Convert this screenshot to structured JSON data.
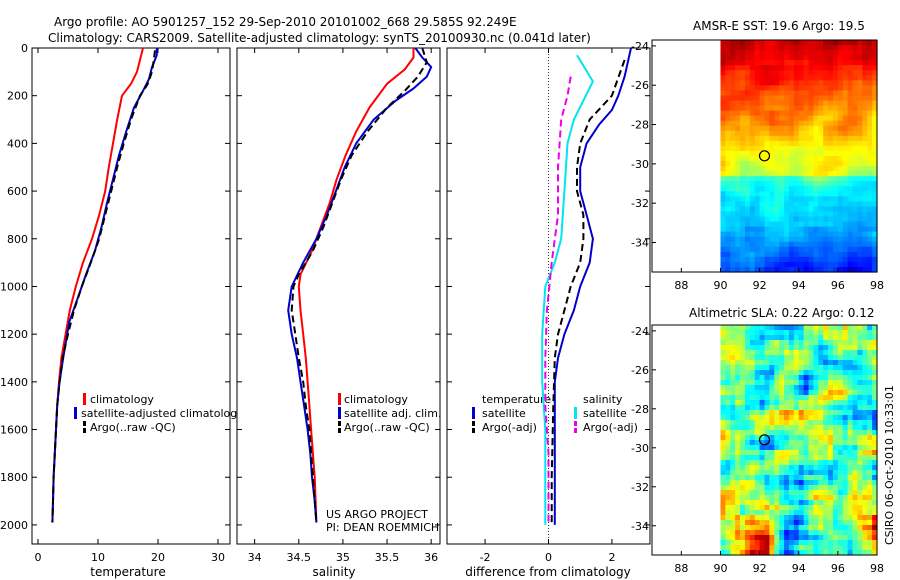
{
  "header": {
    "line1": "Argo profile: AO 5901257_152 29-Sep-2010 20101002_668 29.585S 92.249E",
    "line2": "Climatology: CARS2009. Satellite-adjusted climatology: synTS_20100930.nc (0.041d later)"
  },
  "colors": {
    "climatology": "#ff0000",
    "satellite": "#0000cc",
    "argo": "#000000",
    "cyan": "#00e5ee",
    "magenta": "#ee00ee"
  },
  "chart_data": [
    {
      "type": "line",
      "name": "temperature",
      "xlabel": "temperature",
      "ylabel": "",
      "xlim": [
        -1,
        32
      ],
      "ylim": [
        2080,
        0
      ],
      "xticks": [
        "0",
        "10",
        "20",
        "30"
      ],
      "xtick_values": [
        0,
        10,
        20,
        30
      ],
      "yticks": [
        "0",
        "200",
        "400",
        "600",
        "800",
        "1000",
        "1200",
        "1400",
        "1600",
        "1800",
        "2000"
      ],
      "ytick_values": [
        0,
        200,
        400,
        600,
        800,
        1000,
        1200,
        1400,
        1600,
        1800,
        2000
      ],
      "legend": [
        "climatology",
        "satellite-adjusted climatolog",
        "Argo(..raw -QC)"
      ],
      "series": [
        {
          "name": "climatology",
          "color": "#ff0000",
          "dash": "",
          "width": 2,
          "points": [
            [
              17.5,
              0
            ],
            [
              17,
              50
            ],
            [
              16.5,
              100
            ],
            [
              15.5,
              150
            ],
            [
              14,
              200
            ],
            [
              13.2,
              300
            ],
            [
              12.5,
              400
            ],
            [
              11.8,
              500
            ],
            [
              11.2,
              600
            ],
            [
              10.2,
              700
            ],
            [
              9,
              800
            ],
            [
              7.5,
              900
            ],
            [
              6.3,
              1000
            ],
            [
              5.3,
              1100
            ],
            [
              4.6,
              1200
            ],
            [
              3.9,
              1300
            ],
            [
              3.5,
              1400
            ],
            [
              3.2,
              1500
            ],
            [
              3,
              1600
            ],
            [
              2.8,
              1700
            ],
            [
              2.6,
              1800
            ],
            [
              2.5,
              1900
            ],
            [
              2.4,
              1990
            ]
          ]
        },
        {
          "name": "satellite-adjusted climatology",
          "color": "#0000cc",
          "dash": "",
          "width": 2,
          "points": [
            [
              19.8,
              0
            ],
            [
              19.8,
              30
            ],
            [
              19,
              80
            ],
            [
              18.5,
              130
            ],
            [
              17.5,
              180
            ],
            [
              16,
              250
            ],
            [
              14.7,
              350
            ],
            [
              13.5,
              450
            ],
            [
              12.5,
              550
            ],
            [
              11.5,
              650
            ],
            [
              10.6,
              750
            ],
            [
              9.5,
              850
            ],
            [
              8,
              950
            ],
            [
              6.6,
              1050
            ],
            [
              5.2,
              1150
            ],
            [
              4.2,
              1300
            ],
            [
              3.6,
              1400
            ],
            [
              3.2,
              1500
            ],
            [
              3,
              1600
            ],
            [
              2.8,
              1700
            ],
            [
              2.6,
              1800
            ],
            [
              2.5,
              1900
            ],
            [
              2.4,
              1990
            ]
          ]
        },
        {
          "name": "Argo",
          "color": "#000000",
          "dash": "7,4",
          "width": 2,
          "points": [
            [
              19.5,
              10
            ],
            [
              19.3,
              50
            ],
            [
              19,
              100
            ],
            [
              18.3,
              150
            ],
            [
              17,
              200
            ],
            [
              15.5,
              300
            ],
            [
              14.3,
              400
            ],
            [
              13.2,
              500
            ],
            [
              12.2,
              600
            ],
            [
              11.2,
              700
            ],
            [
              10.2,
              800
            ],
            [
              8.8,
              900
            ],
            [
              7.3,
              1000
            ],
            [
              6,
              1100
            ],
            [
              5,
              1200
            ],
            [
              4.1,
              1300
            ],
            [
              3.6,
              1400
            ],
            [
              3.2,
              1500
            ],
            [
              3,
              1600
            ],
            [
              2.8,
              1700
            ],
            [
              2.6,
              1800
            ],
            [
              2.5,
              1900
            ],
            [
              2.4,
              1990
            ]
          ]
        }
      ]
    },
    {
      "type": "line",
      "name": "salinity",
      "xlabel": "salinity",
      "xlim": [
        33.8,
        36.1
      ],
      "ylim": [
        2080,
        0
      ],
      "xticks": [
        "34",
        "34.5",
        "35",
        "35.5",
        "36"
      ],
      "xtick_values": [
        34,
        34.5,
        35,
        35.5,
        36
      ],
      "legend": [
        "climatology",
        "satellite adj. clim.",
        "Argo(..raw -QC)"
      ],
      "annotation": [
        "US ARGO PROJECT",
        "PI: DEAN ROEMMICH"
      ],
      "series": [
        {
          "name": "climatology",
          "color": "#ff0000",
          "dash": "",
          "width": 2,
          "points": [
            [
              35.8,
              0
            ],
            [
              35.8,
              40
            ],
            [
              35.7,
              90
            ],
            [
              35.5,
              150
            ],
            [
              35.3,
              250
            ],
            [
              35.15,
              350
            ],
            [
              35.03,
              450
            ],
            [
              34.93,
              550
            ],
            [
              34.85,
              650
            ],
            [
              34.75,
              750
            ],
            [
              34.65,
              850
            ],
            [
              34.52,
              950
            ],
            [
              34.5,
              1000
            ],
            [
              34.52,
              1100
            ],
            [
              34.55,
              1200
            ],
            [
              34.58,
              1300
            ],
            [
              34.6,
              1400
            ],
            [
              34.62,
              1500
            ],
            [
              34.64,
              1600
            ],
            [
              34.66,
              1700
            ],
            [
              34.68,
              1800
            ],
            [
              34.69,
              1900
            ],
            [
              34.7,
              1990
            ]
          ]
        },
        {
          "name": "satellite adj. clim.",
          "color": "#0000cc",
          "dash": "",
          "width": 2,
          "points": [
            [
              35.82,
              0
            ],
            [
              35.9,
              40
            ],
            [
              36.0,
              80
            ],
            [
              35.95,
              120
            ],
            [
              35.8,
              170
            ],
            [
              35.6,
              220
            ],
            [
              35.35,
              300
            ],
            [
              35.15,
              400
            ],
            [
              35.02,
              500
            ],
            [
              34.92,
              600
            ],
            [
              34.82,
              700
            ],
            [
              34.7,
              800
            ],
            [
              34.55,
              900
            ],
            [
              34.42,
              1000
            ],
            [
              34.38,
              1100
            ],
            [
              34.42,
              1200
            ],
            [
              34.48,
              1300
            ],
            [
              34.52,
              1400
            ],
            [
              34.56,
              1500
            ],
            [
              34.6,
              1600
            ],
            [
              34.63,
              1700
            ],
            [
              34.65,
              1800
            ],
            [
              34.68,
              1900
            ],
            [
              34.7,
              1990
            ]
          ]
        },
        {
          "name": "Argo",
          "color": "#000000",
          "dash": "7,4",
          "width": 2,
          "points": [
            [
              35.9,
              0
            ],
            [
              35.95,
              60
            ],
            [
              35.85,
              120
            ],
            [
              35.7,
              180
            ],
            [
              35.5,
              250
            ],
            [
              35.28,
              350
            ],
            [
              35.1,
              450
            ],
            [
              34.98,
              550
            ],
            [
              34.88,
              650
            ],
            [
              34.78,
              750
            ],
            [
              34.66,
              850
            ],
            [
              34.5,
              950
            ],
            [
              34.44,
              1000
            ],
            [
              34.42,
              1100
            ],
            [
              34.46,
              1200
            ],
            [
              34.5,
              1300
            ],
            [
              34.55,
              1400
            ],
            [
              34.58,
              1500
            ],
            [
              34.62,
              1600
            ],
            [
              34.64,
              1700
            ],
            [
              34.66,
              1800
            ],
            [
              34.68,
              1900
            ],
            [
              34.7,
              1990
            ]
          ]
        }
      ]
    },
    {
      "type": "line",
      "name": "difference",
      "xlabel": "difference from climatology",
      "xlim": [
        -3.2,
        3.2
      ],
      "ylim": [
        2080,
        0
      ],
      "xticks": [
        "-2",
        "0",
        "2"
      ],
      "xtick_values": [
        -2,
        0,
        2
      ],
      "legend_headers": [
        "temperature",
        "salinity"
      ],
      "legend_left": [
        "satellite",
        "Argo(-adj)"
      ],
      "legend_right": [
        "satellite",
        "Argo(-adj)"
      ],
      "series": [
        {
          "name": "temperature satellite",
          "color": "#0000cc",
          "dash": "",
          "width": 2,
          "points": [
            [
              2.6,
              0
            ],
            [
              2.4,
              120
            ],
            [
              2.2,
              200
            ],
            [
              2,
              260
            ],
            [
              1.6,
              320
            ],
            [
              1.2,
              400
            ],
            [
              1,
              500
            ],
            [
              1,
              600
            ],
            [
              1.2,
              700
            ],
            [
              1.4,
              800
            ],
            [
              1.3,
              900
            ],
            [
              1,
              1000
            ],
            [
              0.8,
              1100
            ],
            [
              0.5,
              1200
            ],
            [
              0.3,
              1300
            ],
            [
              0.2,
              1400
            ],
            [
              0.2,
              1600
            ],
            [
              0.2,
              2000
            ]
          ]
        },
        {
          "name": "temperature Argo(-adj)",
          "color": "#000000",
          "dash": "7,4",
          "width": 2,
          "points": [
            [
              2.4,
              50
            ],
            [
              2,
              200
            ],
            [
              1.3,
              300
            ],
            [
              1,
              400
            ],
            [
              0.9,
              500
            ],
            [
              0.9,
              600
            ],
            [
              1.1,
              700
            ],
            [
              1.1,
              800
            ],
            [
              1,
              900
            ],
            [
              0.7,
              1000
            ],
            [
              0.5,
              1100
            ],
            [
              0.3,
              1200
            ],
            [
              0.2,
              1300
            ],
            [
              0.15,
              1500
            ],
            [
              0.1,
              1800
            ],
            [
              0.1,
              2000
            ]
          ]
        },
        {
          "name": "salinity satellite",
          "color": "#00e5ee",
          "dash": "",
          "width": 2,
          "points": [
            [
              0.9,
              30
            ],
            [
              1.4,
              140
            ],
            [
              1.1,
              220
            ],
            [
              0.8,
              300
            ],
            [
              0.6,
              400
            ],
            [
              0.5,
              600
            ],
            [
              0.4,
              800
            ],
            [
              0.2,
              900
            ],
            [
              -0.1,
              1000
            ],
            [
              -0.2,
              1200
            ],
            [
              -0.2,
              1400
            ],
            [
              -0.1,
              1600
            ],
            [
              -0.1,
              1800
            ],
            [
              -0.1,
              2000
            ]
          ]
        },
        {
          "name": "salinity Argo(-adj)",
          "color": "#ee00ee",
          "dash": "7,4",
          "width": 2,
          "points": [
            [
              0.7,
              120
            ],
            [
              0.6,
              200
            ],
            [
              0.4,
              300
            ],
            [
              0.3,
              500
            ],
            [
              0.3,
              700
            ],
            [
              0.1,
              900
            ],
            [
              -0.05,
              1100
            ],
            [
              -0.1,
              1300
            ],
            [
              -0.1,
              1500
            ],
            [
              0,
              1700
            ],
            [
              0,
              2000
            ]
          ]
        }
      ]
    },
    {
      "type": "heatmap",
      "name": "sst-map",
      "title": "AMSR-E SST: 19.6 Argo: 19.5",
      "xticks": [
        "88",
        "90",
        "92",
        "94",
        "96",
        "98"
      ],
      "xtick_values": [
        88,
        90,
        92,
        94,
        96,
        98
      ],
      "yticks": [
        "-24",
        "-26",
        "-28",
        "-30",
        "-32",
        "-34"
      ],
      "ytick_values": [
        -24,
        -26,
        -28,
        -30,
        -32,
        -34
      ],
      "xlim": [
        86.5,
        98
      ],
      "ylim": [
        -35.5,
        -23.7
      ],
      "marker": [
        92.25,
        -29.59
      ]
    },
    {
      "type": "heatmap",
      "name": "sla-map",
      "title": "Altimetric SLA: 0.22 Argo: 0.12",
      "xticks": [
        "88",
        "90",
        "92",
        "94",
        "96",
        "98"
      ],
      "xtick_values": [
        88,
        90,
        92,
        94,
        96,
        98
      ],
      "yticks": [
        "-24",
        "-26",
        "-28",
        "-30",
        "-32",
        "-34"
      ],
      "ytick_values": [
        -24,
        -26,
        -28,
        -30,
        -32,
        -34
      ],
      "xlim": [
        86.5,
        98
      ],
      "ylim": [
        -35.5,
        -23.7
      ],
      "marker": [
        92.25,
        -29.59
      ]
    }
  ],
  "footer": {
    "credit": "CSIRO 06-Oct-2010 10:33:01"
  }
}
